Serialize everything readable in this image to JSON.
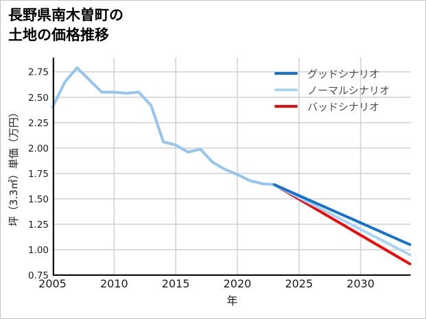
{
  "title": {
    "line1": "長野県南木曽町の",
    "line2": "土地の価格推移"
  },
  "chart_data": {
    "type": "line",
    "title": "長野県南木曽町の土地の価格推移",
    "xlabel": "年",
    "ylabel": "坪（3.3㎡）単価（万円）",
    "xlim": [
      2005,
      2034
    ],
    "ylim": [
      0.75,
      2.89
    ],
    "grid": true,
    "legend_position": "top-right",
    "x_ticks": [
      "2005",
      "2010",
      "2015",
      "2020",
      "2025",
      "2030"
    ],
    "y_ticks": [
      "0.75",
      "1.00",
      "1.25",
      "1.50",
      "1.75",
      "2.00",
      "2.25",
      "2.50",
      "2.75"
    ],
    "series": [
      {
        "id": "history",
        "label": "",
        "color": "#93c5f1",
        "x": [
          2005,
          2006,
          2007,
          2008,
          2009,
          2010,
          2011,
          2012,
          2013,
          2014,
          2015,
          2016,
          2017,
          2018,
          2019,
          2020,
          2021,
          2022,
          2023
        ],
        "y": [
          2.4,
          2.65,
          2.79,
          2.67,
          2.55,
          2.55,
          2.54,
          2.55,
          2.42,
          2.06,
          2.03,
          1.96,
          1.99,
          1.86,
          1.79,
          1.74,
          1.68,
          1.65,
          1.64
        ]
      },
      {
        "id": "bad",
        "label": "バッドシナリオ",
        "color": "#ef0a0a",
        "x": [
          2023,
          2034
        ],
        "y": [
          1.64,
          0.86
        ]
      },
      {
        "id": "normal",
        "label": "ノーマルシナリオ",
        "color": "#a9d3f8",
        "x": [
          2023,
          2034
        ],
        "y": [
          1.64,
          0.95
        ]
      },
      {
        "id": "good",
        "label": "グッドシナリオ",
        "color": "#1173cd",
        "x": [
          2023,
          2034
        ],
        "y": [
          1.64,
          1.05
        ]
      }
    ],
    "legend": [
      {
        "label": "グッドシナリオ",
        "color": "#1173cd"
      },
      {
        "label": "ノーマルシナリオ",
        "color": "#a9d3f8"
      },
      {
        "label": "バッドシナリオ",
        "color": "#ef0a0a"
      }
    ],
    "colors": {
      "grid": "#d0d0d0",
      "axis": "#000000",
      "tick_label": "#1a1a1a",
      "legend_text": "#4d4d4d"
    }
  }
}
